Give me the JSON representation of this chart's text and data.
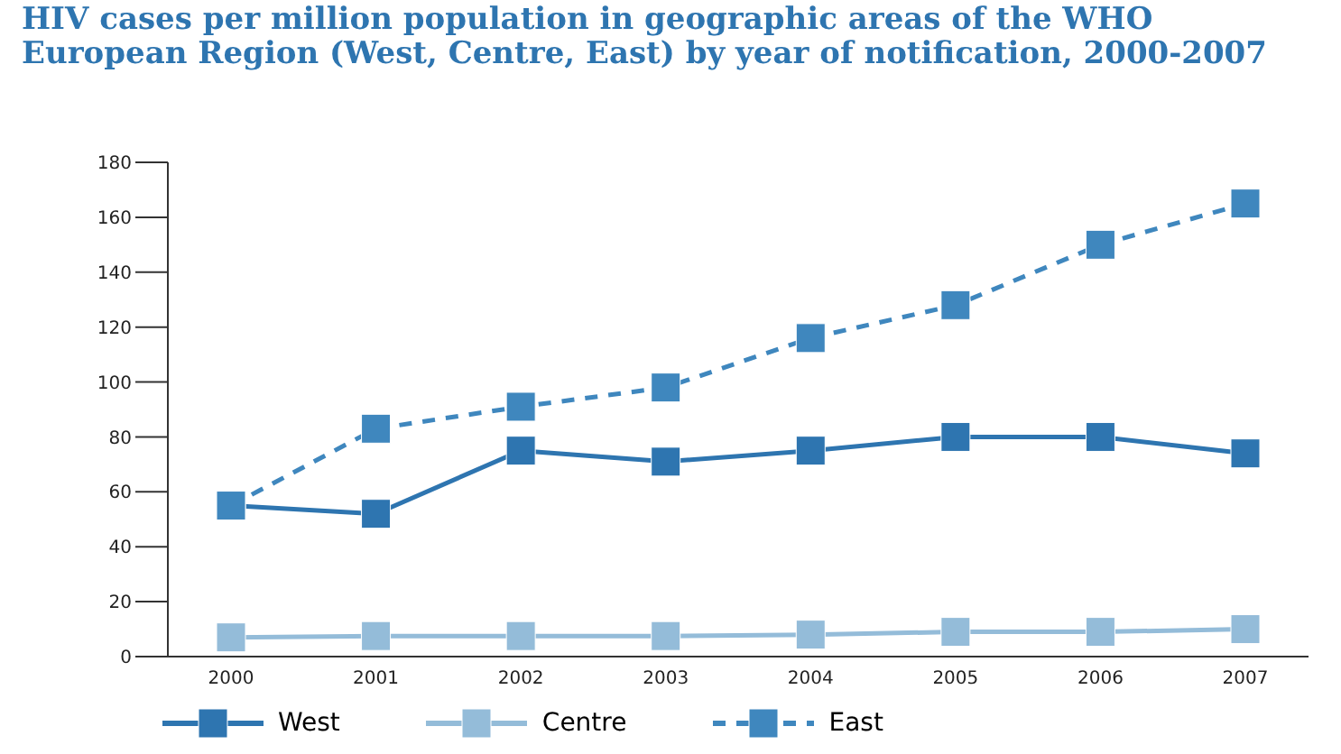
{
  "chart_data": {
    "type": "line",
    "title": "HIV cases per million population in geographic areas of the WHO European Region (West, Centre, East) by year of notification, 2000-2007",
    "categories": [
      "2000",
      "2001",
      "2002",
      "2003",
      "2004",
      "2005",
      "2006",
      "2007"
    ],
    "series": [
      {
        "name": "West",
        "color": "#2e75b0",
        "line_style": "solid",
        "values": [
          55,
          52,
          75,
          71,
          75,
          80,
          80,
          74
        ]
      },
      {
        "name": "Centre",
        "color": "#94bcd9",
        "line_style": "solid",
        "values": [
          7,
          7.5,
          7.5,
          7.5,
          8,
          9,
          9,
          10
        ]
      },
      {
        "name": "East",
        "color": "#3f87be",
        "line_style": "dashed",
        "values": [
          55,
          83,
          91,
          98,
          116,
          128,
          150,
          165
        ]
      }
    ],
    "ylim": [
      0,
      180
    ],
    "yticks": [
      0,
      20,
      40,
      60,
      80,
      100,
      120,
      140,
      160,
      180
    ],
    "grid": false,
    "legend": "bottom",
    "marker": "square"
  }
}
